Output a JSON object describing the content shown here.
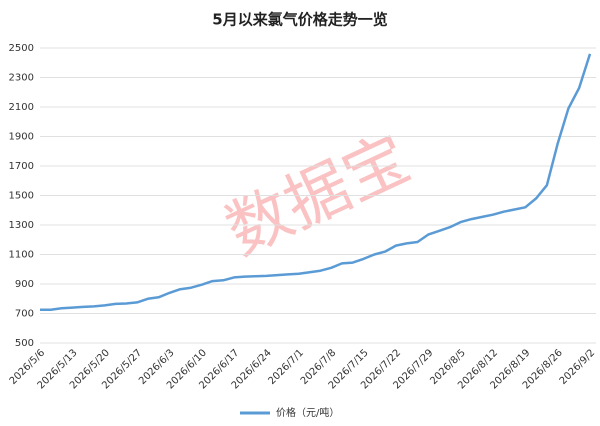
{
  "chart_data": {
    "type": "line",
    "title": "5月以来氯气价格走势一览",
    "watermark": "数据宝",
    "categories": [
      "2026/5/6",
      null,
      null,
      "2026/5/13",
      null,
      null,
      "2026/5/20",
      null,
      null,
      "2026/5/27",
      null,
      null,
      "2026/6/3",
      null,
      null,
      "2026/6/10",
      null,
      null,
      "2026/6/17",
      null,
      null,
      "2026/6/24",
      null,
      null,
      "2026/7/1",
      null,
      null,
      "2026/7/8",
      null,
      null,
      "2026/7/15",
      null,
      null,
      "2026/7/22",
      null,
      null,
      "2026/7/29",
      null,
      null,
      "2026/8/5",
      null,
      null,
      "2026/8/12",
      null,
      null,
      "2026/8/19",
      null,
      null,
      "2026/8/26",
      null,
      null,
      "2026/9/2"
    ],
    "series": [
      {
        "name": "价格（元/吨）",
        "color": "#5b9bd5",
        "values": [
          725,
          725,
          735,
          740,
          745,
          748,
          755,
          765,
          768,
          775,
          800,
          810,
          840,
          865,
          875,
          895,
          920,
          925,
          945,
          950,
          953,
          955,
          960,
          965,
          970,
          980,
          990,
          1010,
          1040,
          1045,
          1070,
          1100,
          1120,
          1160,
          1175,
          1185,
          1235,
          1260,
          1285,
          1320,
          1340,
          1355,
          1370,
          1390,
          1405,
          1420,
          1480,
          1570,
          1850,
          2090,
          2230,
          2460
        ]
      }
    ],
    "ylim": [
      500,
      2500
    ],
    "yticks": [
      500,
      700,
      900,
      1100,
      1300,
      1500,
      1700,
      1900,
      2100,
      2300,
      2500
    ],
    "grid": true
  }
}
